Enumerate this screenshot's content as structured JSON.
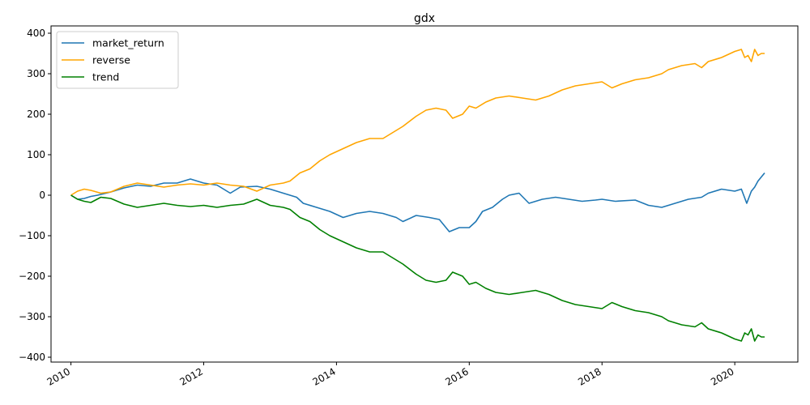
{
  "chart_data": {
    "type": "line",
    "title": "gdx",
    "xlabel": "",
    "ylabel": "",
    "xlim": [
      2009.7,
      2020.95
    ],
    "ylim": [
      -412,
      418
    ],
    "x_ticks": [
      {
        "value": 2010,
        "label": "2010"
      },
      {
        "value": 2012,
        "label": "2012"
      },
      {
        "value": 2014,
        "label": "2014"
      },
      {
        "value": 2016,
        "label": "2016"
      },
      {
        "value": 2018,
        "label": "2018"
      },
      {
        "value": 2020,
        "label": "2020"
      }
    ],
    "y_ticks": [
      {
        "value": 400,
        "label": "400"
      },
      {
        "value": 300,
        "label": "300"
      },
      {
        "value": 200,
        "label": "200"
      },
      {
        "value": 100,
        "label": "100"
      },
      {
        "value": 0,
        "label": "0"
      },
      {
        "value": -100,
        "label": "−100"
      },
      {
        "value": -200,
        "label": "−200"
      },
      {
        "value": -300,
        "label": "−300"
      },
      {
        "value": -400,
        "label": "−400"
      }
    ],
    "grid": false,
    "legend": "top-left",
    "series": [
      {
        "name": "market_return",
        "color": "#1f77b4",
        "points": [
          [
            2010.0,
            0
          ],
          [
            2010.1,
            -10
          ],
          [
            2010.2,
            -8
          ],
          [
            2010.3,
            -3
          ],
          [
            2010.4,
            0
          ],
          [
            2010.6,
            8
          ],
          [
            2010.8,
            18
          ],
          [
            2011.0,
            25
          ],
          [
            2011.2,
            22
          ],
          [
            2011.4,
            30
          ],
          [
            2011.6,
            30
          ],
          [
            2011.8,
            40
          ],
          [
            2012.0,
            30
          ],
          [
            2012.2,
            25
          ],
          [
            2012.4,
            5
          ],
          [
            2012.55,
            20
          ],
          [
            2012.8,
            22
          ],
          [
            2013.0,
            15
          ],
          [
            2013.2,
            5
          ],
          [
            2013.4,
            -5
          ],
          [
            2013.5,
            -20
          ],
          [
            2013.7,
            -30
          ],
          [
            2013.9,
            -40
          ],
          [
            2014.1,
            -55
          ],
          [
            2014.3,
            -45
          ],
          [
            2014.5,
            -40
          ],
          [
            2014.7,
            -45
          ],
          [
            2014.9,
            -55
          ],
          [
            2015.0,
            -65
          ],
          [
            2015.2,
            -50
          ],
          [
            2015.4,
            -55
          ],
          [
            2015.55,
            -60
          ],
          [
            2015.7,
            -90
          ],
          [
            2015.85,
            -80
          ],
          [
            2016.0,
            -80
          ],
          [
            2016.1,
            -65
          ],
          [
            2016.2,
            -40
          ],
          [
            2016.35,
            -30
          ],
          [
            2016.5,
            -10
          ],
          [
            2016.6,
            0
          ],
          [
            2016.75,
            5
          ],
          [
            2016.9,
            -20
          ],
          [
            2017.1,
            -10
          ],
          [
            2017.3,
            -5
          ],
          [
            2017.5,
            -10
          ],
          [
            2017.7,
            -15
          ],
          [
            2017.9,
            -12
          ],
          [
            2018.0,
            -10
          ],
          [
            2018.2,
            -15
          ],
          [
            2018.5,
            -12
          ],
          [
            2018.7,
            -25
          ],
          [
            2018.9,
            -30
          ],
          [
            2019.0,
            -25
          ],
          [
            2019.3,
            -10
          ],
          [
            2019.5,
            -5
          ],
          [
            2019.6,
            5
          ],
          [
            2019.8,
            15
          ],
          [
            2020.0,
            10
          ],
          [
            2020.1,
            15
          ],
          [
            2020.18,
            -20
          ],
          [
            2020.25,
            10
          ],
          [
            2020.3,
            20
          ],
          [
            2020.35,
            35
          ],
          [
            2020.4,
            45
          ],
          [
            2020.45,
            55
          ]
        ]
      },
      {
        "name": "reverse",
        "color": "#ffa500",
        "points": [
          [
            2010.0,
            0
          ],
          [
            2010.1,
            10
          ],
          [
            2010.2,
            15
          ],
          [
            2010.3,
            12
          ],
          [
            2010.45,
            5
          ],
          [
            2010.6,
            8
          ],
          [
            2010.8,
            22
          ],
          [
            2011.0,
            30
          ],
          [
            2011.2,
            25
          ],
          [
            2011.4,
            20
          ],
          [
            2011.6,
            25
          ],
          [
            2011.8,
            28
          ],
          [
            2012.0,
            25
          ],
          [
            2012.2,
            30
          ],
          [
            2012.4,
            25
          ],
          [
            2012.6,
            22
          ],
          [
            2012.8,
            10
          ],
          [
            2013.0,
            25
          ],
          [
            2013.2,
            30
          ],
          [
            2013.3,
            35
          ],
          [
            2013.45,
            55
          ],
          [
            2013.6,
            65
          ],
          [
            2013.75,
            85
          ],
          [
            2013.9,
            100
          ],
          [
            2014.1,
            115
          ],
          [
            2014.3,
            130
          ],
          [
            2014.5,
            140
          ],
          [
            2014.7,
            140
          ],
          [
            2014.9,
            160
          ],
          [
            2015.0,
            170
          ],
          [
            2015.2,
            195
          ],
          [
            2015.35,
            210
          ],
          [
            2015.5,
            215
          ],
          [
            2015.65,
            210
          ],
          [
            2015.75,
            190
          ],
          [
            2015.9,
            200
          ],
          [
            2016.0,
            220
          ],
          [
            2016.1,
            215
          ],
          [
            2016.25,
            230
          ],
          [
            2016.4,
            240
          ],
          [
            2016.6,
            245
          ],
          [
            2016.8,
            240
          ],
          [
            2017.0,
            235
          ],
          [
            2017.2,
            245
          ],
          [
            2017.4,
            260
          ],
          [
            2017.6,
            270
          ],
          [
            2017.8,
            275
          ],
          [
            2018.0,
            280
          ],
          [
            2018.15,
            265
          ],
          [
            2018.3,
            275
          ],
          [
            2018.5,
            285
          ],
          [
            2018.7,
            290
          ],
          [
            2018.9,
            300
          ],
          [
            2019.0,
            310
          ],
          [
            2019.2,
            320
          ],
          [
            2019.4,
            325
          ],
          [
            2019.5,
            315
          ],
          [
            2019.6,
            330
          ],
          [
            2019.8,
            340
          ],
          [
            2020.0,
            355
          ],
          [
            2020.1,
            360
          ],
          [
            2020.15,
            340
          ],
          [
            2020.2,
            345
          ],
          [
            2020.25,
            330
          ],
          [
            2020.3,
            360
          ],
          [
            2020.35,
            345
          ],
          [
            2020.4,
            350
          ],
          [
            2020.45,
            350
          ]
        ]
      },
      {
        "name": "trend",
        "color": "#008000",
        "points": [
          [
            2010.0,
            0
          ],
          [
            2010.1,
            -10
          ],
          [
            2010.2,
            -15
          ],
          [
            2010.3,
            -18
          ],
          [
            2010.45,
            -5
          ],
          [
            2010.6,
            -8
          ],
          [
            2010.8,
            -22
          ],
          [
            2011.0,
            -30
          ],
          [
            2011.2,
            -25
          ],
          [
            2011.4,
            -20
          ],
          [
            2011.6,
            -25
          ],
          [
            2011.8,
            -28
          ],
          [
            2012.0,
            -25
          ],
          [
            2012.2,
            -30
          ],
          [
            2012.4,
            -25
          ],
          [
            2012.6,
            -22
          ],
          [
            2012.8,
            -10
          ],
          [
            2013.0,
            -25
          ],
          [
            2013.2,
            -30
          ],
          [
            2013.3,
            -35
          ],
          [
            2013.45,
            -55
          ],
          [
            2013.6,
            -65
          ],
          [
            2013.75,
            -85
          ],
          [
            2013.9,
            -100
          ],
          [
            2014.1,
            -115
          ],
          [
            2014.3,
            -130
          ],
          [
            2014.5,
            -140
          ],
          [
            2014.7,
            -140
          ],
          [
            2014.9,
            -160
          ],
          [
            2015.0,
            -170
          ],
          [
            2015.2,
            -195
          ],
          [
            2015.35,
            -210
          ],
          [
            2015.5,
            -215
          ],
          [
            2015.65,
            -210
          ],
          [
            2015.75,
            -190
          ],
          [
            2015.9,
            -200
          ],
          [
            2016.0,
            -220
          ],
          [
            2016.1,
            -215
          ],
          [
            2016.25,
            -230
          ],
          [
            2016.4,
            -240
          ],
          [
            2016.6,
            -245
          ],
          [
            2016.8,
            -240
          ],
          [
            2017.0,
            -235
          ],
          [
            2017.2,
            -245
          ],
          [
            2017.4,
            -260
          ],
          [
            2017.6,
            -270
          ],
          [
            2017.8,
            -275
          ],
          [
            2018.0,
            -280
          ],
          [
            2018.15,
            -265
          ],
          [
            2018.3,
            -275
          ],
          [
            2018.5,
            -285
          ],
          [
            2018.7,
            -290
          ],
          [
            2018.9,
            -300
          ],
          [
            2019.0,
            -310
          ],
          [
            2019.2,
            -320
          ],
          [
            2019.4,
            -325
          ],
          [
            2019.5,
            -315
          ],
          [
            2019.6,
            -330
          ],
          [
            2019.8,
            -340
          ],
          [
            2020.0,
            -355
          ],
          [
            2020.1,
            -360
          ],
          [
            2020.15,
            -340
          ],
          [
            2020.2,
            -345
          ],
          [
            2020.25,
            -330
          ],
          [
            2020.3,
            -360
          ],
          [
            2020.35,
            -345
          ],
          [
            2020.4,
            -350
          ],
          [
            2020.45,
            -350
          ]
        ]
      }
    ]
  }
}
